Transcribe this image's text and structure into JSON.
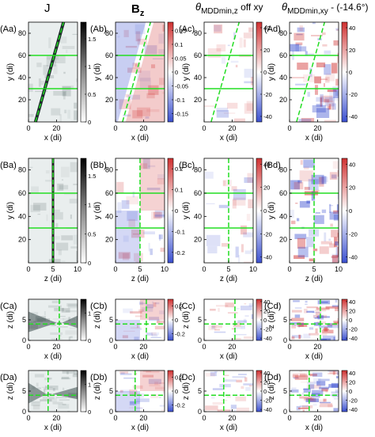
{
  "column_titles": {
    "j": "J",
    "bz_main": "B",
    "bz_sub": "z",
    "theta1_main": "θ",
    "theta1_sub": "MDDmin,z",
    "theta1_suffix": " off xy",
    "theta2_main": "θ",
    "theta2_sub": "MDDmin,xy",
    "theta2_suffix": " - (-14.6°)"
  },
  "colors": {
    "green": "#22dd22",
    "blue_diverging": "#3a4fd0",
    "red_diverging": "#d03030",
    "gray_high": "#111111"
  },
  "chart_data": [
    {
      "id": "Aa",
      "label": "(Aa)",
      "type": "heatmap",
      "quantity": "J",
      "xlabel": "x (di)",
      "ylabel": "y (di)",
      "xlim": [
        0,
        35
      ],
      "ylim": [
        0,
        90
      ],
      "xticks": [
        "0",
        "20"
      ],
      "yticks": [
        "20",
        "40",
        "60",
        "80"
      ],
      "colorbar": {
        "ticks": [
          "1.5",
          "1",
          "0.5",
          "0"
        ],
        "range": [
          0,
          1.8
        ],
        "scale": "gray"
      },
      "green_lines": {
        "horizontal": [
          30,
          60
        ],
        "diagonal": [
          [
            5,
            0
          ],
          [
            25,
            90
          ]
        ]
      }
    },
    {
      "id": "Ab",
      "label": "(Ab)",
      "type": "heatmap",
      "quantity": "Bz",
      "xlabel": "x (di)",
      "ylabel": "y (di)",
      "xlim": [
        0,
        35
      ],
      "ylim": [
        0,
        90
      ],
      "xticks": [
        "0",
        "20"
      ],
      "yticks": [
        "20",
        "40",
        "60",
        "80"
      ],
      "colorbar": {
        "ticks": [
          "0.15",
          "0.1",
          "0.05",
          "0",
          "-0.05",
          "-0.1",
          "-0.15"
        ],
        "range": [
          -0.18,
          0.18
        ],
        "scale": "diverging"
      },
      "green_lines": {
        "horizontal": [
          30,
          60
        ],
        "diagonal": [
          [
            5,
            0
          ],
          [
            25,
            90
          ]
        ]
      }
    },
    {
      "id": "Ac",
      "label": "(Ac)",
      "type": "heatmap",
      "quantity": "theta_MDDmin,z off xy",
      "xlabel": "x (di)",
      "ylabel": "y (di)",
      "xlim": [
        0,
        35
      ],
      "ylim": [
        0,
        90
      ],
      "xticks": [
        "0",
        "20"
      ],
      "yticks": [
        "20",
        "40",
        "60",
        "80"
      ],
      "colorbar": {
        "ticks": [
          "40",
          "20",
          "0",
          "-20",
          "-40"
        ],
        "range": [
          -45,
          45
        ],
        "scale": "diverging"
      },
      "green_lines": {
        "horizontal": [
          30,
          60
        ],
        "diagonal": [
          [
            5,
            0
          ],
          [
            25,
            90
          ]
        ]
      }
    },
    {
      "id": "Ad",
      "label": "(Ad)",
      "type": "heatmap",
      "quantity": "theta_MDDmin,xy - (-14.6°)",
      "xlabel": "x (di)",
      "ylabel": "y (di)",
      "xlim": [
        0,
        35
      ],
      "ylim": [
        0,
        90
      ],
      "xticks": [
        "0",
        "20"
      ],
      "yticks": [
        "20",
        "40",
        "60",
        "80"
      ],
      "colorbar": {
        "ticks": [
          "40",
          "20",
          "0",
          "-20",
          "-40"
        ],
        "range": [
          -45,
          45
        ],
        "scale": "diverging"
      },
      "green_lines": {
        "horizontal": [
          30,
          60
        ],
        "diagonal": [
          [
            5,
            0
          ],
          [
            25,
            90
          ]
        ]
      }
    },
    {
      "id": "Ba",
      "label": "(Ba)",
      "type": "heatmap",
      "quantity": "J",
      "xlabel": "z (di)",
      "ylabel": "y (di)",
      "xlim": [
        0,
        10
      ],
      "ylim": [
        0,
        90
      ],
      "xticks": [
        "0",
        "5",
        "10"
      ],
      "yticks": [
        "20",
        "40",
        "60",
        "80"
      ],
      "colorbar": {
        "ticks": [
          "1.5",
          "1",
          "0.5",
          "0"
        ],
        "range": [
          0,
          1.8
        ],
        "scale": "gray"
      },
      "green_lines": {
        "horizontal": [
          30,
          60
        ],
        "vertical": [
          5
        ]
      }
    },
    {
      "id": "Bb",
      "label": "(Bb)",
      "type": "heatmap",
      "quantity": "Bz",
      "xlabel": "z (di)",
      "ylabel": "y (di)",
      "xlim": [
        0,
        10
      ],
      "ylim": [
        0,
        90
      ],
      "xticks": [
        "0",
        "5",
        "10"
      ],
      "yticks": [
        "20",
        "40",
        "60",
        "80"
      ],
      "colorbar": {
        "ticks": [
          "0.2",
          "0.1",
          "0",
          "-0.1",
          "-0.2"
        ],
        "range": [
          -0.25,
          0.25
        ],
        "scale": "diverging"
      },
      "green_lines": {
        "horizontal": [
          30,
          60
        ],
        "vertical": [
          5
        ]
      }
    },
    {
      "id": "Bc",
      "label": "(Bc)",
      "type": "heatmap",
      "quantity": "theta_MDDmin,z off xy",
      "xlabel": "z (di)",
      "ylabel": "y (di)",
      "xlim": [
        0,
        10
      ],
      "ylim": [
        0,
        90
      ],
      "xticks": [
        "0",
        "5",
        "10"
      ],
      "yticks": [
        "20",
        "40",
        "60",
        "80"
      ],
      "colorbar": {
        "ticks": [
          "40",
          "20",
          "0",
          "-20",
          "-40"
        ],
        "range": [
          -45,
          45
        ],
        "scale": "diverging"
      },
      "green_lines": {
        "horizontal": [
          30,
          60
        ],
        "vertical": [
          5
        ]
      }
    },
    {
      "id": "Bd",
      "label": "(Bd)",
      "type": "heatmap",
      "quantity": "theta_MDDmin,xy - (-14.6°)",
      "xlabel": "z (di)",
      "ylabel": "y (di)",
      "xlim": [
        0,
        10
      ],
      "ylim": [
        0,
        90
      ],
      "xticks": [
        "0",
        "5",
        "10"
      ],
      "yticks": [
        "20",
        "40",
        "60",
        "80"
      ],
      "colorbar": {
        "ticks": [
          "40",
          "20",
          "0",
          "-20",
          "-40"
        ],
        "range": [
          -45,
          45
        ],
        "scale": "diverging"
      },
      "green_lines": {
        "horizontal": [
          30,
          60
        ],
        "vertical": [
          5
        ]
      }
    },
    {
      "id": "Ca",
      "label": "(Ca)",
      "type": "heatmap",
      "quantity": "J",
      "xlabel": "x (di)",
      "ylabel": "z (di)",
      "xlim": [
        0,
        35
      ],
      "ylim": [
        0,
        10
      ],
      "xticks": [
        "0",
        "20"
      ],
      "yticks": [
        "0",
        "5"
      ],
      "colorbar": {
        "ticks": [
          "1",
          "0"
        ],
        "range": [
          0,
          1.5
        ],
        "scale": "gray"
      },
      "green_lines": {
        "horizontal": [
          4
        ],
        "vertical": [
          22
        ]
      }
    },
    {
      "id": "Cb",
      "label": "(Cb)",
      "type": "heatmap",
      "quantity": "Bz",
      "xlabel": "x (di)",
      "ylabel": "z (di)",
      "xlim": [
        0,
        35
      ],
      "ylim": [
        0,
        10
      ],
      "xticks": [
        "0",
        "20"
      ],
      "yticks": [
        "0",
        "5"
      ],
      "colorbar": {
        "ticks": [
          "0.2",
          "0",
          "-0.2"
        ],
        "range": [
          -0.3,
          0.3
        ],
        "scale": "diverging"
      },
      "green_lines": {
        "horizontal": [
          4
        ],
        "vertical": [
          22
        ]
      }
    },
    {
      "id": "Cc",
      "label": "(Cc)",
      "type": "heatmap",
      "quantity": "theta_MDDmin,z off xy",
      "xlabel": "x (di)",
      "ylabel": "z (di)",
      "xlim": [
        0,
        35
      ],
      "ylim": [
        0,
        10
      ],
      "xticks": [
        "0",
        "20"
      ],
      "yticks": [
        "0",
        "5"
      ],
      "colorbar": {
        "ticks": [
          "40",
          "20",
          "0",
          "-20",
          "-40"
        ],
        "range": [
          -45,
          45
        ],
        "scale": "diverging"
      },
      "green_lines": {
        "horizontal": [
          4
        ],
        "vertical": [
          22
        ]
      }
    },
    {
      "id": "Cd",
      "label": "(Cd)",
      "type": "heatmap",
      "quantity": "theta_MDDmin,xy - (-14.6°)",
      "xlabel": "x (di)",
      "ylabel": "z (di)",
      "xlim": [
        0,
        35
      ],
      "ylim": [
        0,
        10
      ],
      "xticks": [
        "0",
        "20"
      ],
      "yticks": [
        "0",
        "5"
      ],
      "colorbar": {
        "ticks": [
          "40",
          "20",
          "0",
          "-20",
          "-40"
        ],
        "range": [
          -45,
          45
        ],
        "scale": "diverging"
      },
      "green_lines": {
        "horizontal": [
          4
        ],
        "vertical": [
          22
        ]
      }
    },
    {
      "id": "Da",
      "label": "(Da)",
      "type": "heatmap",
      "quantity": "J",
      "xlabel": "x (di)",
      "ylabel": "z (di)",
      "xlim": [
        0,
        35
      ],
      "ylim": [
        0,
        10
      ],
      "xticks": [
        "0",
        "20"
      ],
      "yticks": [
        "0",
        "5"
      ],
      "colorbar": {
        "ticks": [
          "1",
          "0"
        ],
        "range": [
          0,
          1.5
        ],
        "scale": "gray"
      },
      "green_lines": {
        "horizontal": [
          4
        ],
        "vertical": [
          14
        ]
      }
    },
    {
      "id": "Db",
      "label": "(Db)",
      "type": "heatmap",
      "quantity": "Bz",
      "xlabel": "x (di)",
      "ylabel": "z (di)",
      "xlim": [
        0,
        35
      ],
      "ylim": [
        0,
        10
      ],
      "xticks": [
        "0",
        "20"
      ],
      "yticks": [
        "0",
        "5"
      ],
      "colorbar": {
        "ticks": [
          "0.2",
          "0",
          "-0.2"
        ],
        "range": [
          -0.3,
          0.3
        ],
        "scale": "diverging"
      },
      "green_lines": {
        "horizontal": [
          4
        ],
        "vertical": [
          14
        ]
      }
    },
    {
      "id": "Dc",
      "label": "(Dc)",
      "type": "heatmap",
      "quantity": "theta_MDDmin,z off xy",
      "xlabel": "x (di)",
      "ylabel": "z (di)",
      "xlim": [
        0,
        35
      ],
      "ylim": [
        0,
        10
      ],
      "xticks": [
        "0",
        "20"
      ],
      "yticks": [
        "0",
        "5"
      ],
      "colorbar": {
        "ticks": [
          "40",
          "20",
          "0",
          "-20",
          "-40"
        ],
        "range": [
          -45,
          45
        ],
        "scale": "diverging"
      },
      "green_lines": {
        "horizontal": [
          4
        ],
        "vertical": [
          14
        ]
      }
    },
    {
      "id": "Dd",
      "label": "(Dd)",
      "type": "heatmap",
      "quantity": "theta_MDDmin,xy - (-14.6°)",
      "xlabel": "x (di)",
      "ylabel": "z (di)",
      "xlim": [
        0,
        35
      ],
      "ylim": [
        0,
        10
      ],
      "xticks": [
        "0",
        "20"
      ],
      "yticks": [
        "0",
        "5"
      ],
      "colorbar": {
        "ticks": [
          "40",
          "20",
          "0",
          "-20",
          "-40"
        ],
        "range": [
          -45,
          45
        ],
        "scale": "diverging"
      },
      "green_lines": {
        "horizontal": [
          4
        ],
        "vertical": [
          14
        ]
      }
    }
  ]
}
